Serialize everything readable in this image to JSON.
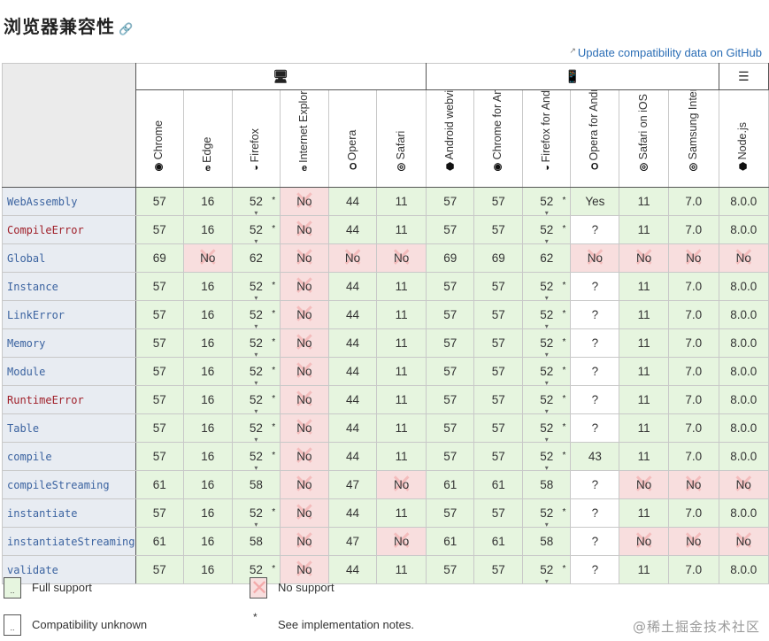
{
  "page": {
    "title": "浏览器兼容性",
    "github_link": "Update compatibility data on GitHub"
  },
  "platforms": [
    {
      "name": "desktop",
      "icon": "desktop-icon",
      "glyph": "🖥"
    },
    {
      "name": "mobile",
      "icon": "mobile-icon",
      "glyph": "📱"
    },
    {
      "name": "server",
      "icon": "server-icon",
      "glyph": "☰"
    }
  ],
  "browsers": [
    {
      "label": "Chrome",
      "icon": "chrome-icon",
      "glyph": "◉"
    },
    {
      "label": "Edge",
      "icon": "edge-icon",
      "glyph": "e"
    },
    {
      "label": "Firefox",
      "icon": "firefox-icon",
      "glyph": "◑"
    },
    {
      "label": "Internet Explore",
      "icon": "ie-icon",
      "glyph": "e"
    },
    {
      "label": "Opera",
      "icon": "opera-icon",
      "glyph": "O"
    },
    {
      "label": "Safari",
      "icon": "safari-icon",
      "glyph": "◎"
    },
    {
      "label": "Android webview",
      "icon": "android-icon",
      "glyph": "⬢"
    },
    {
      "label": "Chrome for And",
      "icon": "chrome-icon",
      "glyph": "◉"
    },
    {
      "label": "Firefox for Andr",
      "icon": "firefox-icon",
      "glyph": "◑"
    },
    {
      "label": "Opera for Andro",
      "icon": "opera-icon",
      "glyph": "O"
    },
    {
      "label": "Safari on iOS",
      "icon": "safari-icon",
      "glyph": "◎"
    },
    {
      "label": "Samsung Intern",
      "icon": "samsung-icon",
      "glyph": "◎"
    },
    {
      "label": "Node.js",
      "icon": "nodejs-icon",
      "glyph": "⬢"
    }
  ],
  "features": [
    {
      "name": "WebAssembly",
      "style": "normal",
      "cells": [
        [
          "y",
          "57"
        ],
        [
          "y",
          "16"
        ],
        [
          "y",
          "52",
          "*"
        ],
        [
          "n",
          "No"
        ],
        [
          "y",
          "44"
        ],
        [
          "y",
          "11"
        ],
        [
          "y",
          "57"
        ],
        [
          "y",
          "57"
        ],
        [
          "y",
          "52",
          "*"
        ],
        [
          "y",
          "Yes"
        ],
        [
          "y",
          "11"
        ],
        [
          "y",
          "7.0"
        ],
        [
          "y",
          "8.0.0"
        ]
      ]
    },
    {
      "name": "CompileError",
      "style": "err",
      "cells": [
        [
          "y",
          "57"
        ],
        [
          "y",
          "16"
        ],
        [
          "y",
          "52",
          "*"
        ],
        [
          "n",
          "No"
        ],
        [
          "y",
          "44"
        ],
        [
          "y",
          "11"
        ],
        [
          "y",
          "57"
        ],
        [
          "y",
          "57"
        ],
        [
          "y",
          "52",
          "*"
        ],
        [
          "u",
          "?"
        ],
        [
          "y",
          "11"
        ],
        [
          "y",
          "7.0"
        ],
        [
          "y",
          "8.0.0"
        ]
      ]
    },
    {
      "name": "Global",
      "style": "normal",
      "cells": [
        [
          "y",
          "69"
        ],
        [
          "n",
          "No"
        ],
        [
          "y",
          "62"
        ],
        [
          "n",
          "No"
        ],
        [
          "n",
          "No"
        ],
        [
          "n",
          "No"
        ],
        [
          "y",
          "69"
        ],
        [
          "y",
          "69"
        ],
        [
          "y",
          "62"
        ],
        [
          "n",
          "No"
        ],
        [
          "n",
          "No"
        ],
        [
          "n",
          "No"
        ],
        [
          "n",
          "No"
        ]
      ]
    },
    {
      "name": "Instance",
      "style": "normal",
      "cells": [
        [
          "y",
          "57"
        ],
        [
          "y",
          "16"
        ],
        [
          "y",
          "52",
          "*"
        ],
        [
          "n",
          "No"
        ],
        [
          "y",
          "44"
        ],
        [
          "y",
          "11"
        ],
        [
          "y",
          "57"
        ],
        [
          "y",
          "57"
        ],
        [
          "y",
          "52",
          "*"
        ],
        [
          "u",
          "?"
        ],
        [
          "y",
          "11"
        ],
        [
          "y",
          "7.0"
        ],
        [
          "y",
          "8.0.0"
        ]
      ]
    },
    {
      "name": "LinkError",
      "style": "normal",
      "cells": [
        [
          "y",
          "57"
        ],
        [
          "y",
          "16"
        ],
        [
          "y",
          "52",
          "*"
        ],
        [
          "n",
          "No"
        ],
        [
          "y",
          "44"
        ],
        [
          "y",
          "11"
        ],
        [
          "y",
          "57"
        ],
        [
          "y",
          "57"
        ],
        [
          "y",
          "52",
          "*"
        ],
        [
          "u",
          "?"
        ],
        [
          "y",
          "11"
        ],
        [
          "y",
          "7.0"
        ],
        [
          "y",
          "8.0.0"
        ]
      ]
    },
    {
      "name": "Memory",
      "style": "normal",
      "cells": [
        [
          "y",
          "57"
        ],
        [
          "y",
          "16"
        ],
        [
          "y",
          "52",
          "*"
        ],
        [
          "n",
          "No"
        ],
        [
          "y",
          "44"
        ],
        [
          "y",
          "11"
        ],
        [
          "y",
          "57"
        ],
        [
          "y",
          "57"
        ],
        [
          "y",
          "52",
          "*"
        ],
        [
          "u",
          "?"
        ],
        [
          "y",
          "11"
        ],
        [
          "y",
          "7.0"
        ],
        [
          "y",
          "8.0.0"
        ]
      ]
    },
    {
      "name": "Module",
      "style": "normal",
      "cells": [
        [
          "y",
          "57"
        ],
        [
          "y",
          "16"
        ],
        [
          "y",
          "52",
          "*"
        ],
        [
          "n",
          "No"
        ],
        [
          "y",
          "44"
        ],
        [
          "y",
          "11"
        ],
        [
          "y",
          "57"
        ],
        [
          "y",
          "57"
        ],
        [
          "y",
          "52",
          "*"
        ],
        [
          "u",
          "?"
        ],
        [
          "y",
          "11"
        ],
        [
          "y",
          "7.0"
        ],
        [
          "y",
          "8.0.0"
        ]
      ]
    },
    {
      "name": "RuntimeError",
      "style": "err",
      "cells": [
        [
          "y",
          "57"
        ],
        [
          "y",
          "16"
        ],
        [
          "y",
          "52",
          "*"
        ],
        [
          "n",
          "No"
        ],
        [
          "y",
          "44"
        ],
        [
          "y",
          "11"
        ],
        [
          "y",
          "57"
        ],
        [
          "y",
          "57"
        ],
        [
          "y",
          "52",
          "*"
        ],
        [
          "u",
          "?"
        ],
        [
          "y",
          "11"
        ],
        [
          "y",
          "7.0"
        ],
        [
          "y",
          "8.0.0"
        ]
      ]
    },
    {
      "name": "Table",
      "style": "normal",
      "cells": [
        [
          "y",
          "57"
        ],
        [
          "y",
          "16"
        ],
        [
          "y",
          "52",
          "*"
        ],
        [
          "n",
          "No"
        ],
        [
          "y",
          "44"
        ],
        [
          "y",
          "11"
        ],
        [
          "y",
          "57"
        ],
        [
          "y",
          "57"
        ],
        [
          "y",
          "52",
          "*"
        ],
        [
          "u",
          "?"
        ],
        [
          "y",
          "11"
        ],
        [
          "y",
          "7.0"
        ],
        [
          "y",
          "8.0.0"
        ]
      ]
    },
    {
      "name": "compile",
      "style": "normal",
      "cells": [
        [
          "y",
          "57"
        ],
        [
          "y",
          "16"
        ],
        [
          "y",
          "52",
          "*"
        ],
        [
          "n",
          "No"
        ],
        [
          "y",
          "44"
        ],
        [
          "y",
          "11"
        ],
        [
          "y",
          "57"
        ],
        [
          "y",
          "57"
        ],
        [
          "y",
          "52",
          "*"
        ],
        [
          "y",
          "43"
        ],
        [
          "y",
          "11"
        ],
        [
          "y",
          "7.0"
        ],
        [
          "y",
          "8.0.0"
        ]
      ]
    },
    {
      "name": "compileStreaming",
      "style": "normal",
      "cells": [
        [
          "y",
          "61"
        ],
        [
          "y",
          "16"
        ],
        [
          "y",
          "58"
        ],
        [
          "n",
          "No"
        ],
        [
          "y",
          "47"
        ],
        [
          "n",
          "No"
        ],
        [
          "y",
          "61"
        ],
        [
          "y",
          "61"
        ],
        [
          "y",
          "58"
        ],
        [
          "u",
          "?"
        ],
        [
          "n",
          "No"
        ],
        [
          "n",
          "No"
        ],
        [
          "n",
          "No"
        ]
      ]
    },
    {
      "name": "instantiate",
      "style": "normal",
      "cells": [
        [
          "y",
          "57"
        ],
        [
          "y",
          "16"
        ],
        [
          "y",
          "52",
          "*"
        ],
        [
          "n",
          "No"
        ],
        [
          "y",
          "44"
        ],
        [
          "y",
          "11"
        ],
        [
          "y",
          "57"
        ],
        [
          "y",
          "57"
        ],
        [
          "y",
          "52",
          "*"
        ],
        [
          "u",
          "?"
        ],
        [
          "y",
          "11"
        ],
        [
          "y",
          "7.0"
        ],
        [
          "y",
          "8.0.0"
        ]
      ]
    },
    {
      "name": "instantiateStreaming",
      "style": "normal",
      "cells": [
        [
          "y",
          "61"
        ],
        [
          "y",
          "16"
        ],
        [
          "y",
          "58"
        ],
        [
          "n",
          "No"
        ],
        [
          "y",
          "47"
        ],
        [
          "n",
          "No"
        ],
        [
          "y",
          "61"
        ],
        [
          "y",
          "61"
        ],
        [
          "y",
          "58"
        ],
        [
          "u",
          "?"
        ],
        [
          "n",
          "No"
        ],
        [
          "n",
          "No"
        ],
        [
          "n",
          "No"
        ]
      ]
    },
    {
      "name": "validate",
      "style": "normal",
      "cells": [
        [
          "y",
          "57"
        ],
        [
          "y",
          "16"
        ],
        [
          "y",
          "52",
          "*"
        ],
        [
          "n",
          "No"
        ],
        [
          "y",
          "44"
        ],
        [
          "y",
          "11"
        ],
        [
          "y",
          "57"
        ],
        [
          "y",
          "57"
        ],
        [
          "y",
          "52",
          "*"
        ],
        [
          "u",
          "?"
        ],
        [
          "y",
          "11"
        ],
        [
          "y",
          "7.0"
        ],
        [
          "y",
          "8.0.0"
        ]
      ]
    }
  ],
  "legend": {
    "full_support": "Full support",
    "no_support": "No support",
    "unknown": "Compatibility unknown",
    "notes_symbol": "*",
    "notes": "See implementation notes.",
    "swatch_glyph": ".."
  },
  "colors": {
    "yes_bg": "#e6f5df",
    "no_bg": "#f8dede",
    "unknown_bg": "#ffffff",
    "feature_bg": "#e8ecf2",
    "link": "#2a6db5"
  },
  "watermark": "@稀土掘金技术社区"
}
